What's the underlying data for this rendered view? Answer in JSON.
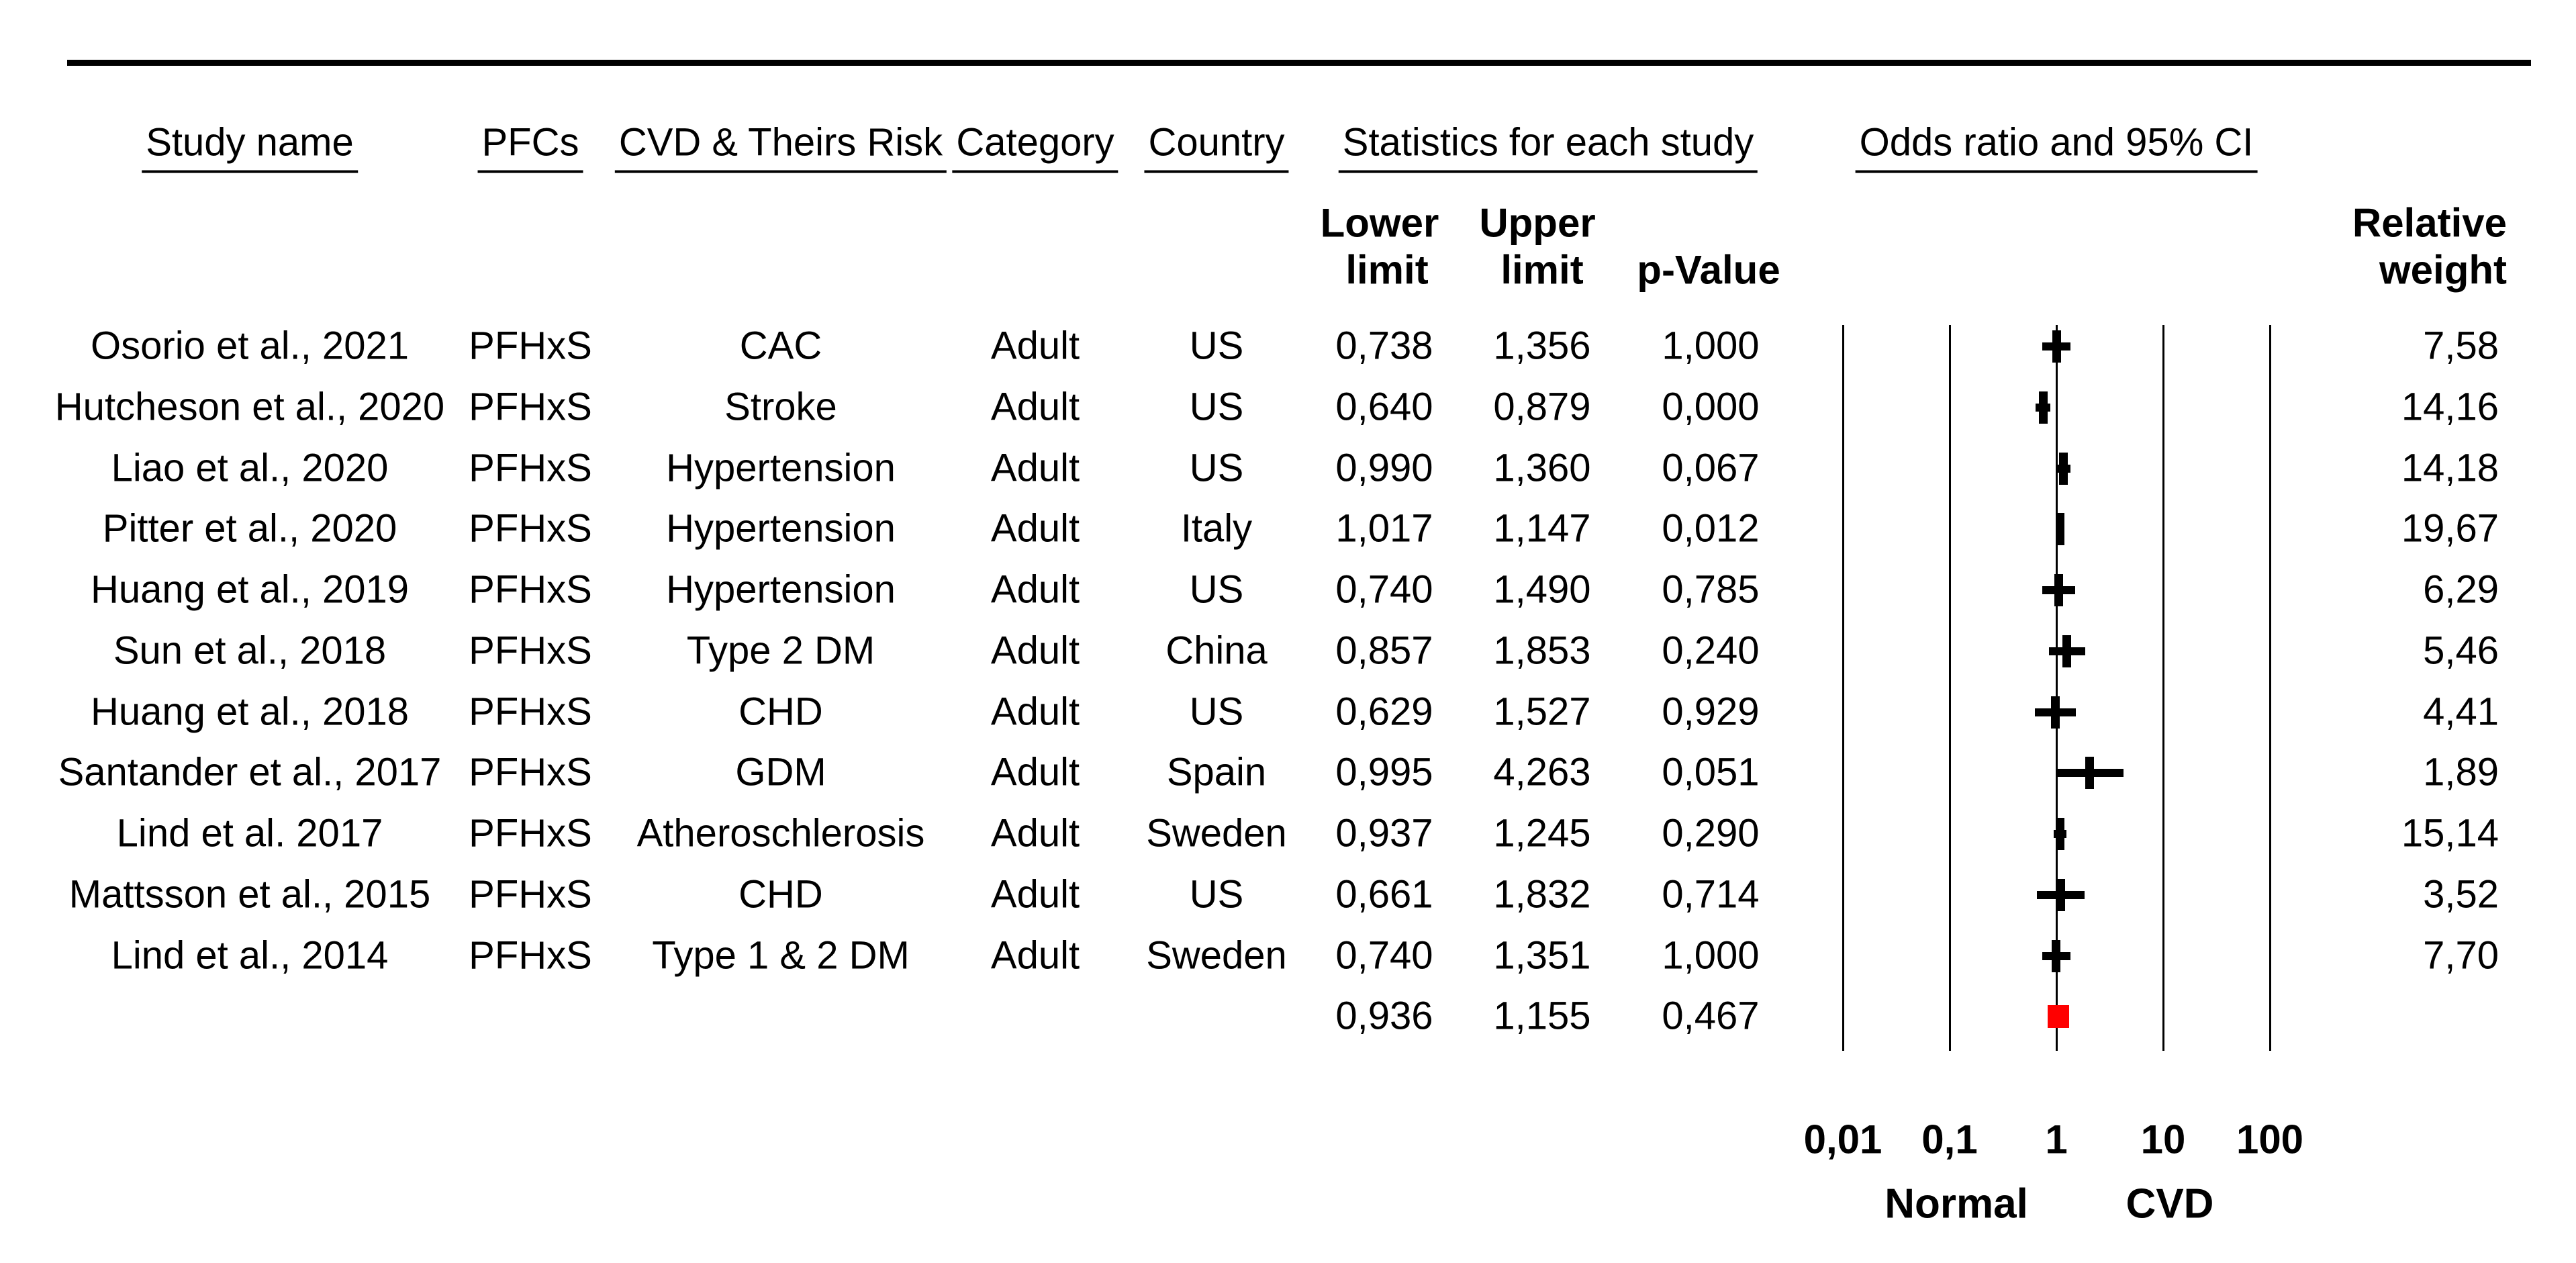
{
  "colors": {
    "ink": "#000000",
    "summary_marker": "#FF0000",
    "background": "#FFFFFF"
  },
  "columns": {
    "study": "Study name",
    "pfcs": "PFCs",
    "risk": "CVD & Theirs Risk",
    "category": "Category",
    "country": "Country",
    "stats_group": "Statistics for each study",
    "or_group": "Odds ratio and 95% CI",
    "lower": [
      "Lower",
      "limit"
    ],
    "upper": [
      "Upper",
      "limit"
    ],
    "p_value": "p-Value",
    "weight": [
      "Relative",
      "weight"
    ]
  },
  "chart_data": {
    "type": "forest",
    "x_scale": "log10",
    "xlim": [
      0.01,
      100
    ],
    "x_tick_values": [
      0.01,
      0.1,
      1,
      10,
      100
    ],
    "x_tick_labels": [
      "0,01",
      "0,1",
      "1",
      "10",
      "100"
    ],
    "axis_caption_left": "Normal",
    "axis_caption_right": "CVD",
    "studies": [
      {
        "study": "Osorio et al., 2021",
        "pfcs": "PFHxS",
        "risk": "CAC",
        "category": "Adult",
        "country": "US",
        "lower_label": "0,738",
        "upper_label": "1,356",
        "p_label": "1,000",
        "weight_label": "7,58",
        "lower": 0.738,
        "upper": 1.356,
        "weight": 7.58
      },
      {
        "study": "Hutcheson et al., 2020",
        "pfcs": "PFHxS",
        "risk": "Stroke",
        "category": "Adult",
        "country": "US",
        "lower_label": "0,640",
        "upper_label": "0,879",
        "p_label": "0,000",
        "weight_label": "14,16",
        "lower": 0.64,
        "upper": 0.879,
        "weight": 14.16
      },
      {
        "study": "Liao et al., 2020",
        "pfcs": "PFHxS",
        "risk": "Hypertension",
        "category": "Adult",
        "country": "US",
        "lower_label": "0,990",
        "upper_label": "1,360",
        "p_label": "0,067",
        "weight_label": "14,18",
        "lower": 0.99,
        "upper": 1.36,
        "weight": 14.18
      },
      {
        "study": "Pitter et al., 2020",
        "pfcs": "PFHxS",
        "risk": "Hypertension",
        "category": "Adult",
        "country": "Italy",
        "lower_label": "1,017",
        "upper_label": "1,147",
        "p_label": "0,012",
        "weight_label": "19,67",
        "lower": 1.017,
        "upper": 1.147,
        "weight": 19.67
      },
      {
        "study": "Huang et al., 2019",
        "pfcs": "PFHxS",
        "risk": "Hypertension",
        "category": "Adult",
        "country": "US",
        "lower_label": "0,740",
        "upper_label": "1,490",
        "p_label": "0,785",
        "weight_label": "6,29",
        "lower": 0.74,
        "upper": 1.49,
        "weight": 6.29
      },
      {
        "study": "Sun et al., 2018",
        "pfcs": "PFHxS",
        "risk": "Type 2 DM",
        "category": "Adult",
        "country": "China",
        "lower_label": "0,857",
        "upper_label": "1,853",
        "p_label": "0,240",
        "weight_label": "5,46",
        "lower": 0.857,
        "upper": 1.853,
        "weight": 5.46
      },
      {
        "study": "Huang et al., 2018",
        "pfcs": "PFHxS",
        "risk": "CHD",
        "category": "Adult",
        "country": "US",
        "lower_label": "0,629",
        "upper_label": "1,527",
        "p_label": "0,929",
        "weight_label": "4,41",
        "lower": 0.629,
        "upper": 1.527,
        "weight": 4.41
      },
      {
        "study": "Santander et al., 2017",
        "pfcs": "PFHxS",
        "risk": "GDM",
        "category": "Adult",
        "country": "Spain",
        "lower_label": "0,995",
        "upper_label": "4,263",
        "p_label": "0,051",
        "weight_label": "1,89",
        "lower": 0.995,
        "upper": 4.263,
        "weight": 1.89
      },
      {
        "study": "Lind et al. 2017",
        "pfcs": "PFHxS",
        "risk": "Atheroschlerosis",
        "category": "Adult",
        "country": "Sweden",
        "lower_label": "0,937",
        "upper_label": "1,245",
        "p_label": "0,290",
        "weight_label": "15,14",
        "lower": 0.937,
        "upper": 1.245,
        "weight": 15.14
      },
      {
        "study": "Mattsson et al., 2015",
        "pfcs": "PFHxS",
        "risk": "CHD",
        "category": "Adult",
        "country": "US",
        "lower_label": "0,661",
        "upper_label": "1,832",
        "p_label": "0,714",
        "weight_label": "3,52",
        "lower": 0.661,
        "upper": 1.832,
        "weight": 3.52
      },
      {
        "study": "Lind et al., 2014",
        "pfcs": "PFHxS",
        "risk": "Type 1 & 2 DM",
        "category": "Adult",
        "country": "Sweden",
        "lower_label": "0,740",
        "upper_label": "1,351",
        "p_label": "1,000",
        "weight_label": "7,70",
        "lower": 0.74,
        "upper": 1.351,
        "weight": 7.7
      }
    ],
    "summary": {
      "lower_label": "0,936",
      "upper_label": "1,155",
      "p_label": "0,467",
      "lower": 0.936,
      "upper": 1.155
    }
  }
}
